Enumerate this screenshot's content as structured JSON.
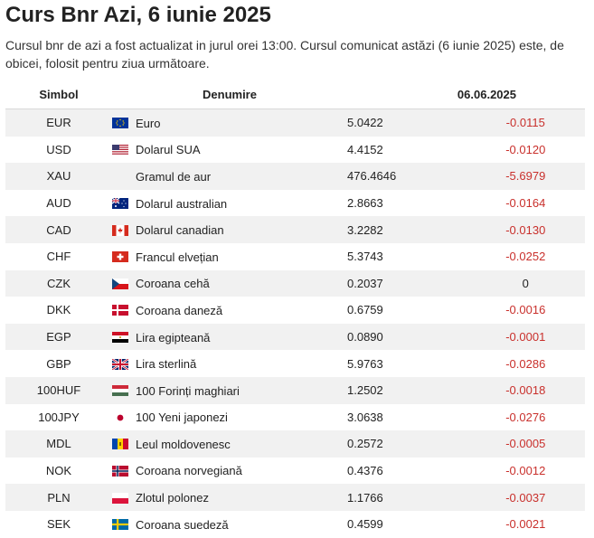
{
  "page": {
    "title": "Curs Bnr Azi, 6 iunie 2025",
    "description": "Cursul bnr de azi a fost actualizat in jurul orei 13:00. Cursul comunicat astăzi (6 iunie 2025) este, de obicei, folosit pentru ziua următoare."
  },
  "table": {
    "headers": {
      "symbol": "Simbol",
      "name": "Denumire",
      "date": "06.06.2025"
    },
    "rows": [
      {
        "symbol": "EUR",
        "flag": "eu-flag-icon",
        "name": "Euro",
        "value": "5.0422",
        "change": "-0.0115"
      },
      {
        "symbol": "USD",
        "flag": "us-flag-icon",
        "name": "Dolarul SUA",
        "value": "4.4152",
        "change": "-0.0120"
      },
      {
        "symbol": "XAU",
        "flag": "",
        "name": "Gramul de aur",
        "value": "476.4646",
        "change": "-5.6979"
      },
      {
        "symbol": "AUD",
        "flag": "au-flag-icon",
        "name": "Dolarul australian",
        "value": "2.8663",
        "change": "-0.0164"
      },
      {
        "symbol": "CAD",
        "flag": "ca-flag-icon",
        "name": "Dolarul canadian",
        "value": "3.2282",
        "change": "-0.0130"
      },
      {
        "symbol": "CHF",
        "flag": "ch-flag-icon",
        "name": "Francul elvețian",
        "value": "5.3743",
        "change": "-0.0252"
      },
      {
        "symbol": "CZK",
        "flag": "cz-flag-icon",
        "name": "Coroana cehă",
        "value": "0.2037",
        "change": "0"
      },
      {
        "symbol": "DKK",
        "flag": "dk-flag-icon",
        "name": "Coroana daneză",
        "value": "0.6759",
        "change": "-0.0016"
      },
      {
        "symbol": "EGP",
        "flag": "eg-flag-icon",
        "name": "Lira egipteană",
        "value": "0.0890",
        "change": "-0.0001"
      },
      {
        "symbol": "GBP",
        "flag": "gb-flag-icon",
        "name": "Lira sterlină",
        "value": "5.9763",
        "change": "-0.0286"
      },
      {
        "symbol": "100HUF",
        "flag": "hu-flag-icon",
        "name": "100 Forinți maghiari",
        "value": "1.2502",
        "change": "-0.0018"
      },
      {
        "symbol": "100JPY",
        "flag": "jp-flag-icon",
        "name": "100 Yeni japonezi",
        "value": "3.0638",
        "change": "-0.0276"
      },
      {
        "symbol": "MDL",
        "flag": "md-flag-icon",
        "name": "Leul moldovenesc",
        "value": "0.2572",
        "change": "-0.0005"
      },
      {
        "symbol": "NOK",
        "flag": "no-flag-icon",
        "name": "Coroana norvegiană",
        "value": "0.4376",
        "change": "-0.0012"
      },
      {
        "symbol": "PLN",
        "flag": "pl-flag-icon",
        "name": "Zlotul polonez",
        "value": "1.1766",
        "change": "-0.0037"
      },
      {
        "symbol": "SEK",
        "flag": "se-flag-icon",
        "name": "Coroana suedeză",
        "value": "0.4599",
        "change": "-0.0021"
      }
    ]
  },
  "colors": {
    "negative": "#c9302c",
    "row_alt": "#f1f1f1"
  }
}
